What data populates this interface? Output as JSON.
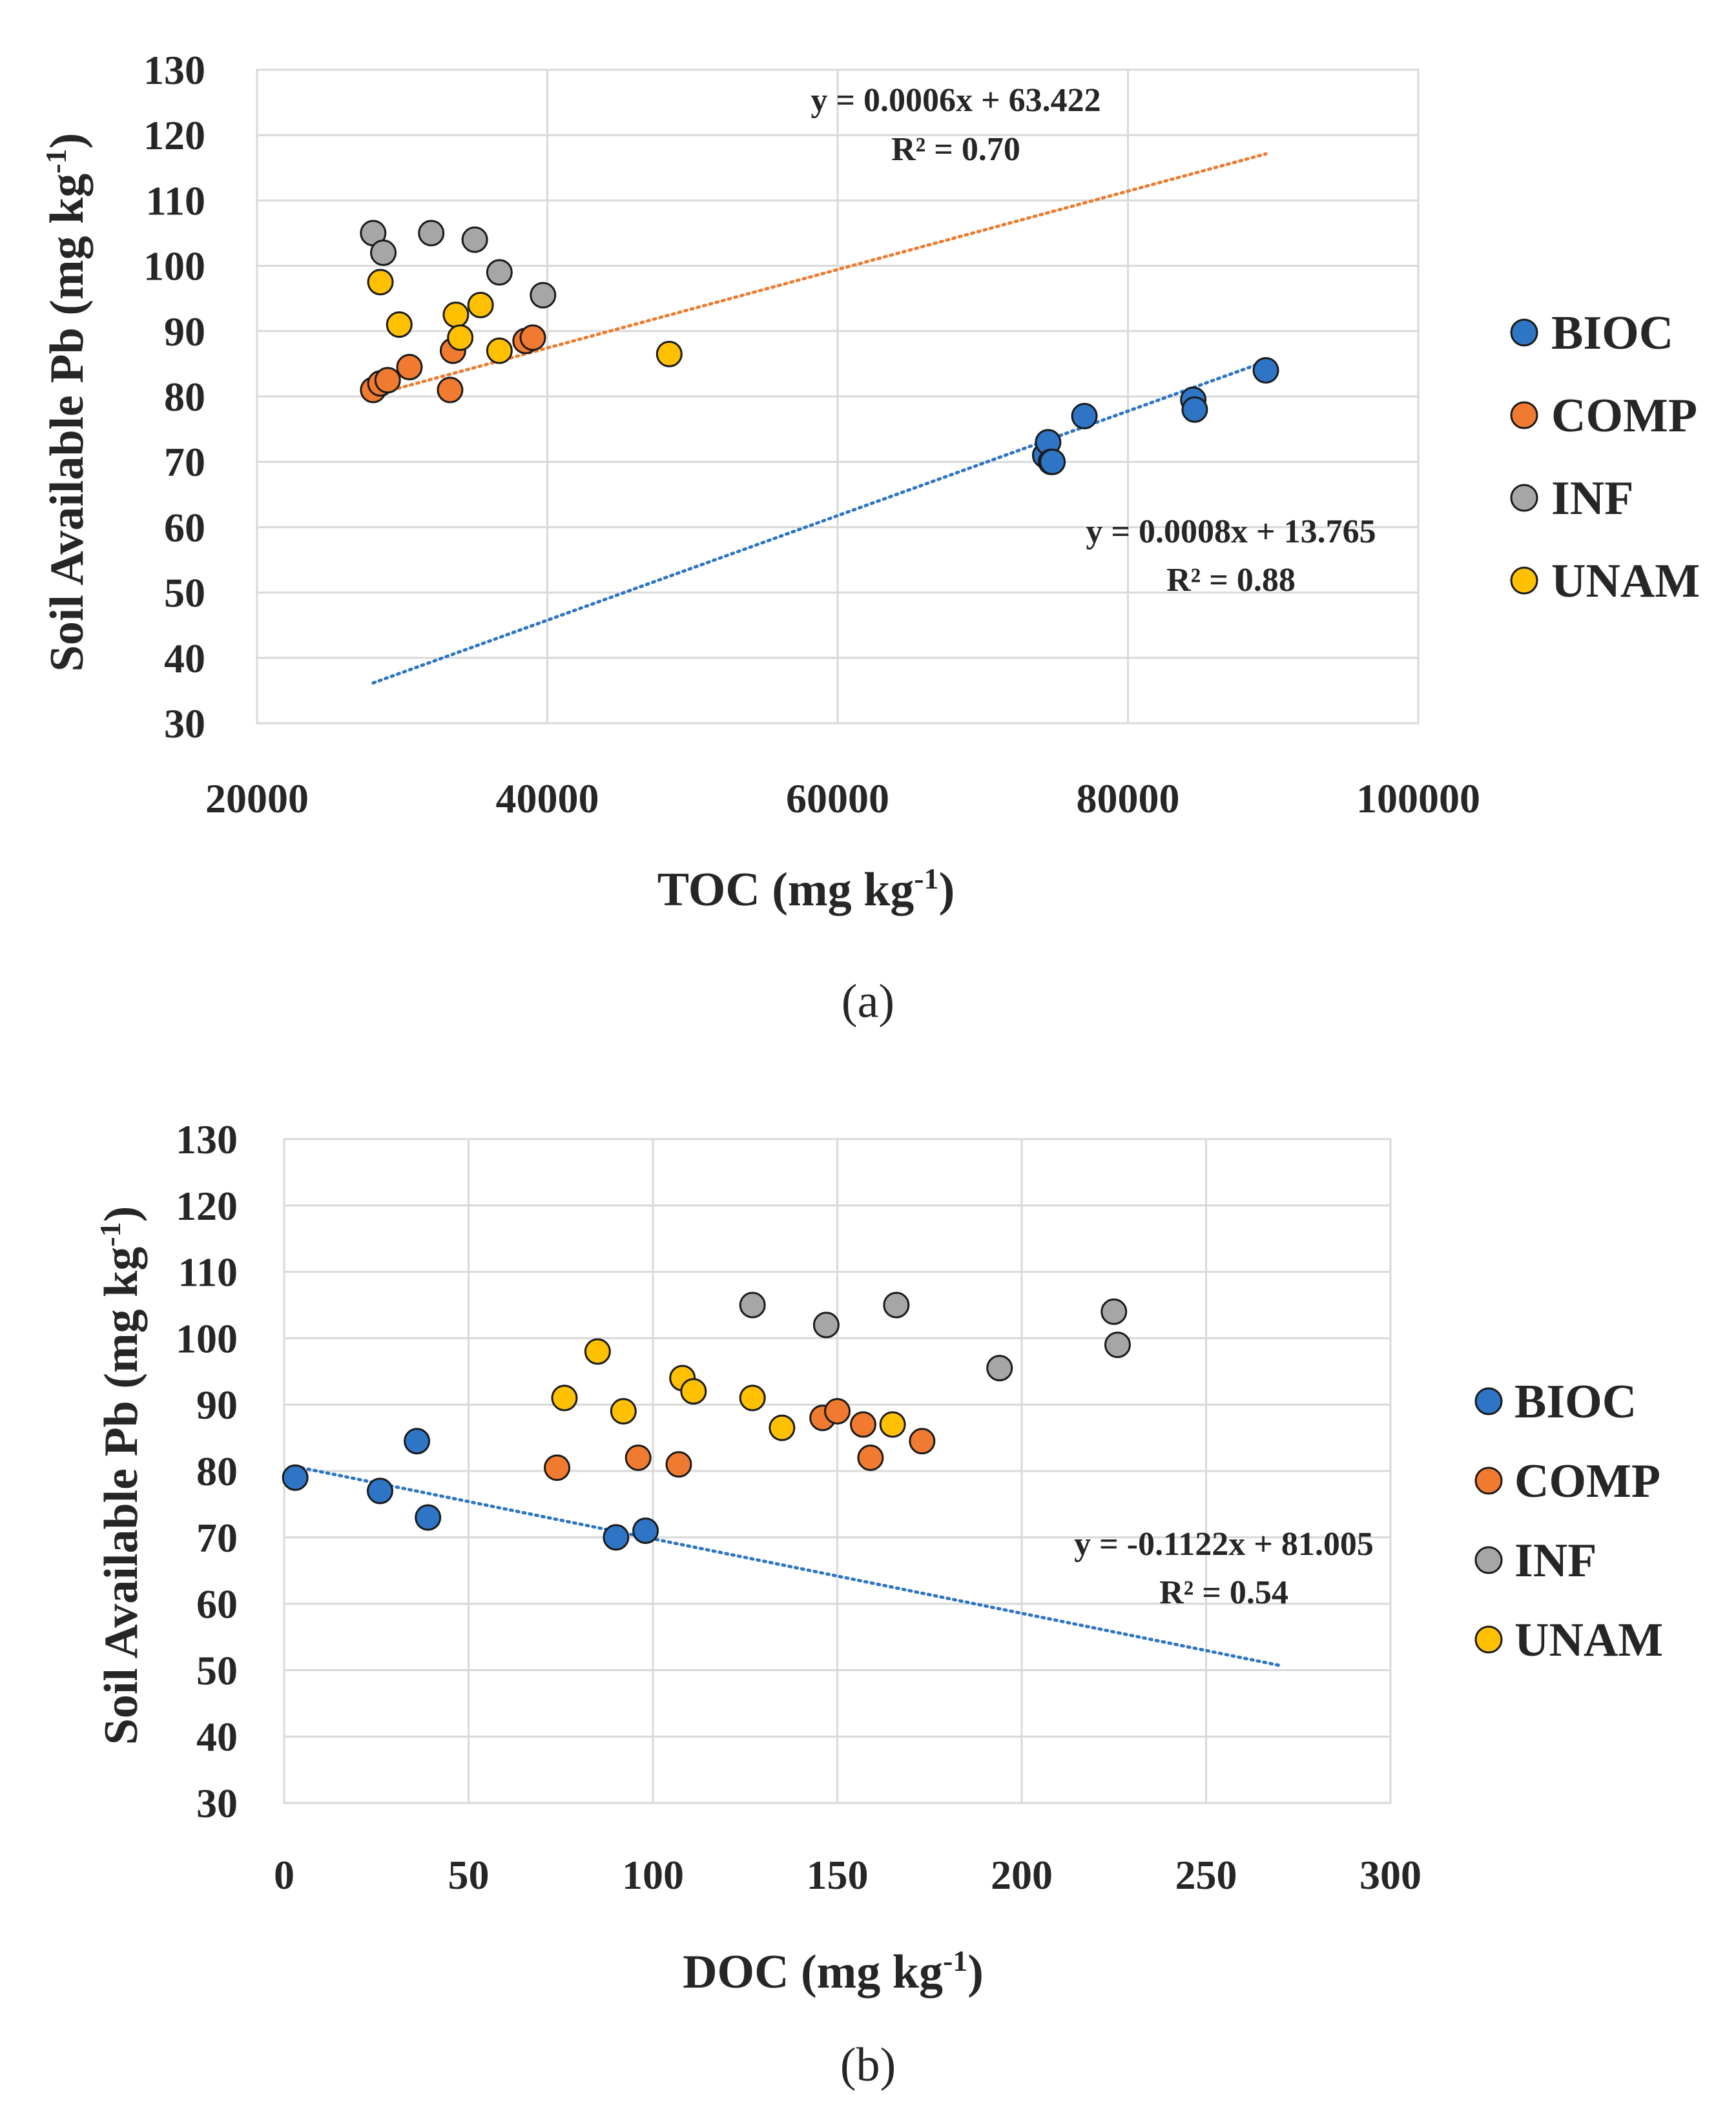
{
  "colors": {
    "BIOC": "#2E75C6",
    "COMP": "#F07A2F",
    "INF": "#A6A6A6",
    "UNAM": "#FFC000",
    "grid": "#D9D9D9",
    "text": "#262626"
  },
  "chart_data": [
    {
      "type": "scatter",
      "panel": "(a)",
      "xlabel": "TOC (mg kg",
      "xlabel_sup": "-1",
      "xlabel_end": ")",
      "ylabel": "Soil Available Pb (mg kg",
      "ylabel_sup": "-1",
      "ylabel_end": ")",
      "xlim": [
        20000,
        100000
      ],
      "ylim": [
        30,
        130
      ],
      "xticks": [
        20000,
        40000,
        60000,
        80000,
        100000
      ],
      "yticks": [
        30,
        40,
        50,
        60,
        70,
        80,
        90,
        100,
        110,
        120,
        130
      ],
      "grid": true,
      "legend": [
        "BIOC",
        "COMP",
        "INF",
        "UNAM"
      ],
      "legend_position": "right",
      "series": [
        {
          "name": "BIOC",
          "x": [
            74300,
            74500,
            74700,
            74800,
            77000,
            84500,
            84600,
            89500
          ],
          "y": [
            71,
            73,
            70,
            70,
            77,
            79.5,
            78,
            84
          ]
        },
        {
          "name": "COMP",
          "x": [
            28000,
            28500,
            29000,
            30500,
            33300,
            33500,
            38500,
            39000
          ],
          "y": [
            81,
            82,
            82.5,
            84.5,
            81,
            87,
            88.5,
            89
          ]
        },
        {
          "name": "INF",
          "x": [
            28000,
            28700,
            32000,
            35000,
            36700,
            39700
          ],
          "y": [
            105,
            102,
            105,
            104,
            99,
            95.5
          ]
        },
        {
          "name": "UNAM",
          "x": [
            28500,
            29800,
            33700,
            34000,
            35400,
            36700,
            48400
          ],
          "y": [
            97.5,
            91,
            92.5,
            89,
            94,
            87,
            86.5
          ]
        }
      ],
      "trendlines": [
        {
          "series": "COMP",
          "x_range": [
            28000,
            89500
          ],
          "slope": 0.0006,
          "intercept": 63.422,
          "equation": "y = 0.0006x + 63.422",
          "r2": "R² = 0.70"
        },
        {
          "series": "BIOC",
          "x_range": [
            28000,
            89500
          ],
          "slope": 0.0008,
          "intercept": 13.765,
          "equation": "y = 0.0008x + 13.765",
          "r2": "R² = 0.88"
        }
      ]
    },
    {
      "type": "scatter",
      "panel": "(b)",
      "xlabel": "DOC (mg kg",
      "xlabel_sup": "-1",
      "xlabel_end": ")",
      "ylabel": "Soil Available Pb (mg kg",
      "ylabel_sup": "-1",
      "ylabel_end": ")",
      "xlim": [
        0,
        300
      ],
      "ylim": [
        30,
        130
      ],
      "xticks": [
        0,
        50,
        100,
        150,
        200,
        250,
        300
      ],
      "yticks": [
        30,
        40,
        50,
        60,
        70,
        80,
        90,
        100,
        110,
        120,
        130
      ],
      "grid": true,
      "legend": [
        "BIOC",
        "COMP",
        "INF",
        "UNAM"
      ],
      "legend_position": "right",
      "series": [
        {
          "name": "BIOC",
          "x": [
            3,
            26,
            36,
            39,
            90,
            98
          ],
          "y": [
            79,
            77,
            84.5,
            73,
            70,
            71
          ]
        },
        {
          "name": "COMP",
          "x": [
            74,
            96,
            107,
            146,
            150,
            157,
            159,
            173
          ],
          "y": [
            80.5,
            82,
            81,
            88,
            89,
            87,
            82,
            84.5
          ]
        },
        {
          "name": "INF",
          "x": [
            127,
            147,
            166,
            194,
            225,
            226
          ],
          "y": [
            105,
            102,
            105,
            95.5,
            104,
            99
          ]
        },
        {
          "name": "UNAM",
          "x": [
            76,
            85,
            92,
            108,
            111,
            127,
            135,
            165
          ],
          "y": [
            91,
            98,
            89,
            94,
            92,
            91,
            86.5,
            87
          ]
        }
      ],
      "trendlines": [
        {
          "series": "BIOC",
          "x_range": [
            3,
            270
          ],
          "slope": -0.1122,
          "intercept": 81.005,
          "equation": "y = -0.1122x + 81.005",
          "r2": "R² = 0.54"
        }
      ]
    }
  ]
}
